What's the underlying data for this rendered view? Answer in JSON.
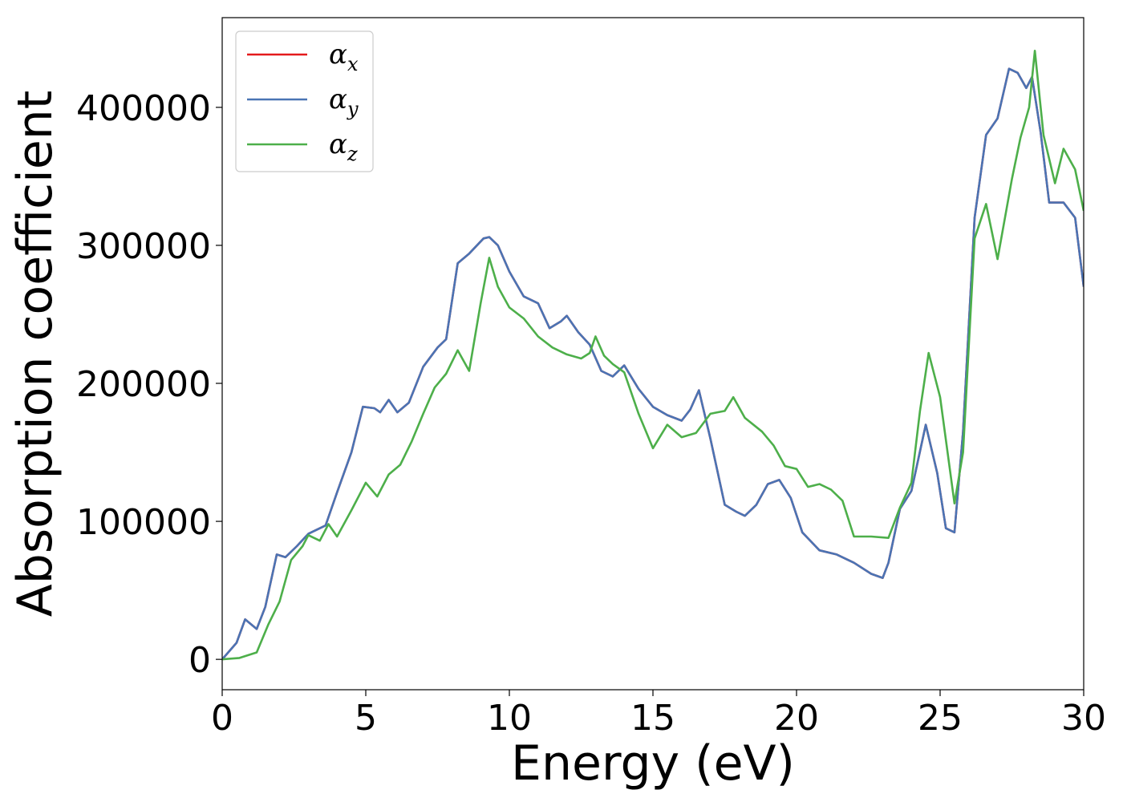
{
  "chart_data": {
    "type": "line",
    "xlabel": "Energy (eV)",
    "ylabel": "Absorption coefficient",
    "xlim": [
      0,
      30
    ],
    "ylim": [
      -22000,
      465000
    ],
    "xticks": [
      0,
      5,
      10,
      15,
      20,
      25,
      30
    ],
    "xtick_labels": [
      "0",
      "5",
      "10",
      "15",
      "20",
      "25",
      "30"
    ],
    "yticks": [
      0,
      100000,
      200000,
      300000,
      400000
    ],
    "ytick_labels": [
      "0",
      "100000",
      "200000",
      "300000",
      "400000"
    ],
    "grid": false,
    "legend_position": "top-left",
    "series": [
      {
        "name": "α",
        "subscript": "x",
        "color": "#e41a1c",
        "x": [
          0,
          0.5,
          0.8,
          1.2,
          1.5,
          1.9,
          2.2,
          2.6,
          3.0,
          3.6,
          4.0,
          4.5,
          4.9,
          5.3,
          5.5,
          5.8,
          6.1,
          6.5,
          7.0,
          7.5,
          7.8,
          8.2,
          8.6,
          9.1,
          9.3,
          9.6,
          10.0,
          10.5,
          11.0,
          11.4,
          11.8,
          12.0,
          12.4,
          12.8,
          13.2,
          13.6,
          14.0,
          14.5,
          15.0,
          15.5,
          16.0,
          16.3,
          16.6,
          17.0,
          17.5,
          17.9,
          18.2,
          18.6,
          19.0,
          19.4,
          19.8,
          20.2,
          20.8,
          21.4,
          22.0,
          22.6,
          23.0,
          23.2,
          23.6,
          24.0,
          24.5,
          24.9,
          25.2,
          25.5,
          25.8,
          26.2,
          26.6,
          27.0,
          27.4,
          27.7,
          28.0,
          28.2,
          28.5,
          28.8,
          29.3,
          29.7,
          30.0
        ],
        "values": [
          0,
          12000,
          29000,
          22000,
          38000,
          76000,
          74000,
          82000,
          91000,
          97000,
          121000,
          150000,
          183000,
          182000,
          179000,
          188000,
          179000,
          186000,
          212000,
          226000,
          232000,
          287000,
          294000,
          305000,
          306000,
          300000,
          281000,
          263000,
          258000,
          240000,
          245000,
          249000,
          237000,
          228000,
          209000,
          205000,
          213000,
          196000,
          183000,
          177000,
          173000,
          181000,
          195000,
          160000,
          112000,
          107000,
          104000,
          112000,
          127000,
          130000,
          117000,
          92000,
          79000,
          76000,
          70000,
          62000,
          59000,
          70000,
          109000,
          122000,
          170000,
          135000,
          95000,
          92000,
          165000,
          320000,
          380000,
          392000,
          428000,
          425000,
          414000,
          422000,
          382000,
          331000,
          331000,
          320000,
          270000
        ]
      },
      {
        "name": "α",
        "subscript": "y",
        "color": "#4a74b4",
        "x": [
          0,
          0.5,
          0.8,
          1.2,
          1.5,
          1.9,
          2.2,
          2.6,
          3.0,
          3.6,
          4.0,
          4.5,
          4.9,
          5.3,
          5.5,
          5.8,
          6.1,
          6.5,
          7.0,
          7.5,
          7.8,
          8.2,
          8.6,
          9.1,
          9.3,
          9.6,
          10.0,
          10.5,
          11.0,
          11.4,
          11.8,
          12.0,
          12.4,
          12.8,
          13.2,
          13.6,
          14.0,
          14.5,
          15.0,
          15.5,
          16.0,
          16.3,
          16.6,
          17.0,
          17.5,
          17.9,
          18.2,
          18.6,
          19.0,
          19.4,
          19.8,
          20.2,
          20.8,
          21.4,
          22.0,
          22.6,
          23.0,
          23.2,
          23.6,
          24.0,
          24.5,
          24.9,
          25.2,
          25.5,
          25.8,
          26.2,
          26.6,
          27.0,
          27.4,
          27.7,
          28.0,
          28.2,
          28.5,
          28.8,
          29.3,
          29.7,
          30.0
        ],
        "values": [
          0,
          12000,
          29000,
          22000,
          38000,
          76000,
          74000,
          82000,
          91000,
          97000,
          121000,
          150000,
          183000,
          182000,
          179000,
          188000,
          179000,
          186000,
          212000,
          226000,
          232000,
          287000,
          294000,
          305000,
          306000,
          300000,
          281000,
          263000,
          258000,
          240000,
          245000,
          249000,
          237000,
          228000,
          209000,
          205000,
          213000,
          196000,
          183000,
          177000,
          173000,
          181000,
          195000,
          160000,
          112000,
          107000,
          104000,
          112000,
          127000,
          130000,
          117000,
          92000,
          79000,
          76000,
          70000,
          62000,
          59000,
          70000,
          109000,
          122000,
          170000,
          135000,
          95000,
          92000,
          165000,
          320000,
          380000,
          392000,
          428000,
          425000,
          414000,
          422000,
          382000,
          331000,
          331000,
          320000,
          270000
        ]
      },
      {
        "name": "α",
        "subscript": "z",
        "color": "#4daf4a",
        "x": [
          0,
          0.6,
          1.2,
          1.6,
          2.0,
          2.4,
          2.8,
          3.0,
          3.4,
          3.7,
          4.0,
          4.5,
          5.0,
          5.4,
          5.8,
          6.2,
          6.6,
          7.0,
          7.4,
          7.8,
          8.2,
          8.6,
          9.0,
          9.3,
          9.6,
          10.0,
          10.5,
          11.0,
          11.5,
          12.0,
          12.5,
          12.8,
          13.0,
          13.3,
          13.6,
          14.0,
          14.5,
          15.0,
          15.5,
          16.0,
          16.5,
          17.0,
          17.5,
          17.8,
          18.2,
          18.8,
          19.2,
          19.6,
          20.0,
          20.4,
          20.8,
          21.2,
          21.6,
          22.0,
          22.6,
          23.2,
          23.6,
          24.0,
          24.3,
          24.6,
          25.0,
          25.5,
          25.8,
          26.2,
          26.6,
          27.0,
          27.5,
          27.8,
          28.1,
          28.3,
          28.6,
          29.0,
          29.3,
          29.7,
          30.0
        ],
        "values": [
          0,
          1000,
          5000,
          25000,
          42000,
          72000,
          82000,
          90000,
          86000,
          98000,
          89000,
          108000,
          128000,
          118000,
          134000,
          141000,
          158000,
          178000,
          197000,
          207000,
          224000,
          209000,
          258000,
          291000,
          270000,
          255000,
          247000,
          234000,
          226000,
          221000,
          218000,
          222000,
          234000,
          220000,
          214000,
          208000,
          178000,
          153000,
          170000,
          161000,
          164000,
          178000,
          180000,
          190000,
          175000,
          165000,
          155000,
          140000,
          138000,
          125000,
          127000,
          123000,
          115000,
          89000,
          89000,
          88000,
          110000,
          128000,
          180000,
          222000,
          190000,
          113000,
          150000,
          305000,
          330000,
          290000,
          348000,
          378000,
          400000,
          441000,
          380000,
          345000,
          370000,
          355000,
          325000
        ]
      }
    ]
  }
}
